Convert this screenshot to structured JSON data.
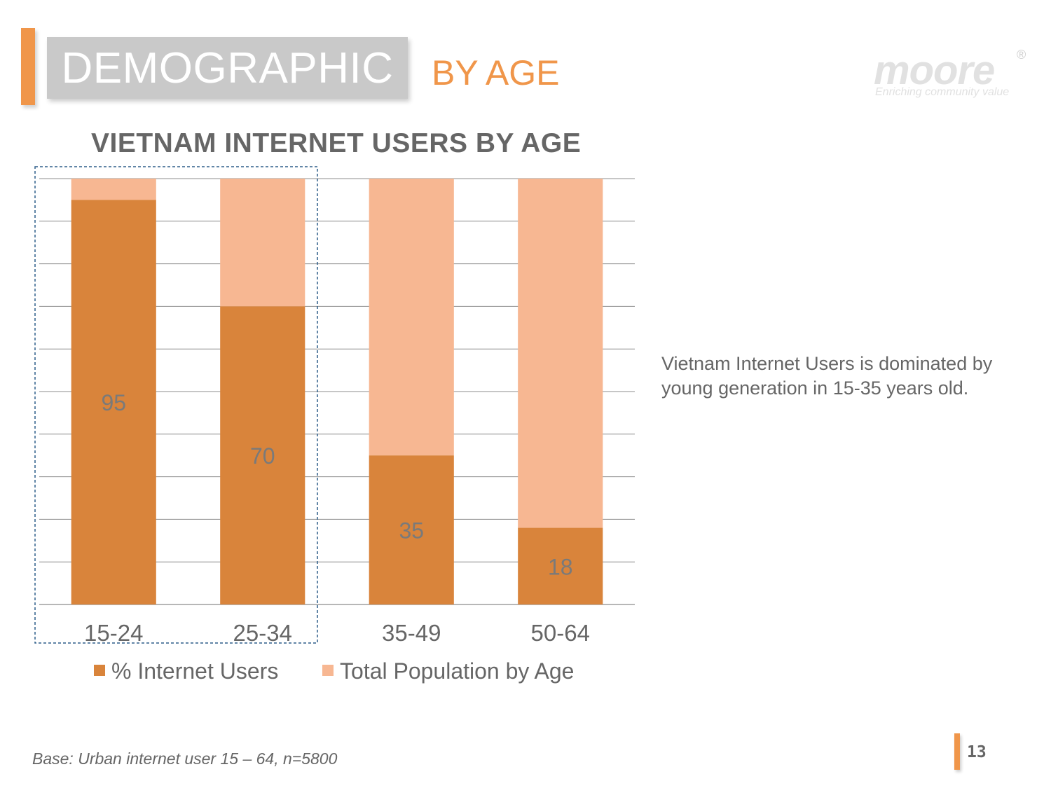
{
  "header": {
    "title": "DEMOGRAPHIC",
    "subtitle": "BY AGE"
  },
  "logo": {
    "name": "moore",
    "tagline": "Enriching community value",
    "registered": "®"
  },
  "colors": {
    "accent": "#f0964a",
    "series_users": "#d9843b",
    "series_population": "#f7b792",
    "grid": "#8c8c8c",
    "highlight_border": "#2e5f8a"
  },
  "chart_data": {
    "type": "bar",
    "stacked": true,
    "title": "VIETNAM INTERNET USERS BY AGE",
    "categories": [
      "15-24",
      "25-34",
      "35-49",
      "50-64"
    ],
    "series": [
      {
        "name": "% Internet Users",
        "values": [
          95,
          70,
          35,
          18
        ],
        "data_labels": [
          "95",
          "70",
          "35",
          "18"
        ]
      },
      {
        "name": "Total Population by Age",
        "values": [
          5,
          30,
          65,
          82
        ]
      }
    ],
    "ylim": [
      0,
      100
    ],
    "gridlines": true,
    "legend": "bottom",
    "highlighted_categories": [
      "15-24",
      "25-34"
    ]
  },
  "note": "Vietnam Internet Users is dominated by young generation in 15-35 years old.",
  "footnote": "Base: Urban internet user 15 – 64, n=5800",
  "page_number": "13"
}
